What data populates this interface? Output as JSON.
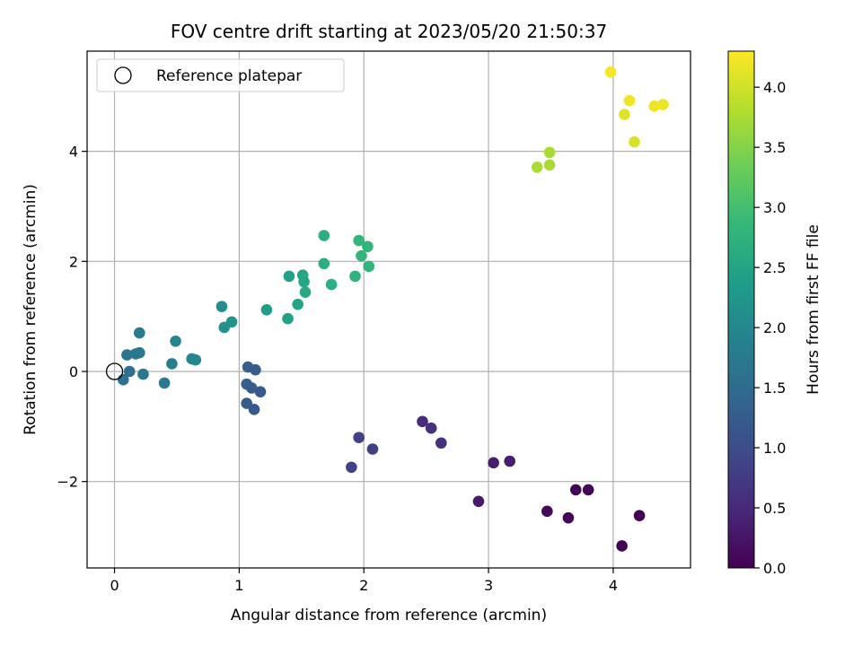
{
  "chart_data": {
    "type": "scatter",
    "title": "FOV centre drift starting at 2023/05/20 21:50:37",
    "xlabel": "Angular distance from reference (arcmin)",
    "ylabel": "Rotation from reference (arcmin)",
    "xlim": [
      -0.22,
      4.62
    ],
    "ylim": [
      -3.57,
      5.82
    ],
    "xticks": [
      0,
      1,
      2,
      3,
      4
    ],
    "yticks": [
      -2,
      0,
      2,
      4
    ],
    "ytick_labels": [
      "−2",
      "0",
      "2",
      "4"
    ],
    "grid": true,
    "legend": {
      "placement": "top-left",
      "entries": [
        "Reference platepar"
      ]
    },
    "reference_point": {
      "x": 0.0,
      "y": 0.0
    },
    "colorbar": {
      "label": "Hours from first FF file",
      "range": [
        0.0,
        4.3
      ],
      "ticks": [
        0.0,
        0.5,
        1.0,
        1.5,
        2.0,
        2.5,
        3.0,
        3.5,
        4.0
      ],
      "tick_labels": [
        "0.0",
        "0.5",
        "1.0",
        "1.5",
        "2.0",
        "2.5",
        "3.0",
        "3.5",
        "4.0"
      ],
      "colormap": "viridis"
    },
    "points": [
      {
        "x": 4.07,
        "y": -3.17,
        "c": 0.0
      },
      {
        "x": 3.64,
        "y": -2.66,
        "c": 0.05
      },
      {
        "x": 3.47,
        "y": -2.54,
        "c": 0.1
      },
      {
        "x": 3.7,
        "y": -2.15,
        "c": 0.05
      },
      {
        "x": 3.8,
        "y": -2.15,
        "c": 0.05
      },
      {
        "x": 4.21,
        "y": -2.62,
        "c": 0.0
      },
      {
        "x": 2.92,
        "y": -2.36,
        "c": 0.3
      },
      {
        "x": 3.04,
        "y": -1.66,
        "c": 0.35
      },
      {
        "x": 3.17,
        "y": -1.63,
        "c": 0.35
      },
      {
        "x": 2.47,
        "y": -0.91,
        "c": 0.55
      },
      {
        "x": 2.54,
        "y": -1.03,
        "c": 0.6
      },
      {
        "x": 2.62,
        "y": -1.3,
        "c": 0.6
      },
      {
        "x": 1.96,
        "y": -1.2,
        "c": 0.85
      },
      {
        "x": 2.07,
        "y": -1.41,
        "c": 0.8
      },
      {
        "x": 1.9,
        "y": -1.74,
        "c": 0.85
      },
      {
        "x": 1.07,
        "y": 0.08,
        "c": 1.3
      },
      {
        "x": 1.13,
        "y": 0.03,
        "c": 1.25
      },
      {
        "x": 1.06,
        "y": -0.23,
        "c": 1.3
      },
      {
        "x": 1.1,
        "y": -0.3,
        "c": 1.25
      },
      {
        "x": 1.17,
        "y": -0.37,
        "c": 1.2
      },
      {
        "x": 1.06,
        "y": -0.58,
        "c": 1.25
      },
      {
        "x": 1.12,
        "y": -0.69,
        "c": 1.2
      },
      {
        "x": 0.07,
        "y": -0.15,
        "c": 1.6
      },
      {
        "x": 0.1,
        "y": 0.3,
        "c": 1.65
      },
      {
        "x": 0.12,
        "y": 0.0,
        "c": 1.6
      },
      {
        "x": 0.17,
        "y": 0.32,
        "c": 1.7
      },
      {
        "x": 0.2,
        "y": 0.34,
        "c": 1.7
      },
      {
        "x": 0.2,
        "y": 0.7,
        "c": 1.75
      },
      {
        "x": 0.23,
        "y": -0.05,
        "c": 1.7
      },
      {
        "x": 0.4,
        "y": -0.21,
        "c": 1.75
      },
      {
        "x": 0.46,
        "y": 0.14,
        "c": 1.85
      },
      {
        "x": 0.49,
        "y": 0.55,
        "c": 1.95
      },
      {
        "x": 0.62,
        "y": 0.23,
        "c": 2.0
      },
      {
        "x": 0.65,
        "y": 0.21,
        "c": 2.0
      },
      {
        "x": 0.86,
        "y": 1.18,
        "c": 2.1
      },
      {
        "x": 0.88,
        "y": 0.8,
        "c": 2.15
      },
      {
        "x": 0.94,
        "y": 0.9,
        "c": 2.2
      },
      {
        "x": 1.22,
        "y": 1.12,
        "c": 2.35
      },
      {
        "x": 1.39,
        "y": 0.96,
        "c": 2.45
      },
      {
        "x": 1.4,
        "y": 1.73,
        "c": 2.45
      },
      {
        "x": 1.47,
        "y": 1.22,
        "c": 2.5
      },
      {
        "x": 1.51,
        "y": 1.75,
        "c": 2.55
      },
      {
        "x": 1.52,
        "y": 1.63,
        "c": 2.55
      },
      {
        "x": 1.53,
        "y": 1.44,
        "c": 2.6
      },
      {
        "x": 1.68,
        "y": 2.47,
        "c": 2.7
      },
      {
        "x": 1.68,
        "y": 1.96,
        "c": 2.7
      },
      {
        "x": 1.74,
        "y": 1.58,
        "c": 2.7
      },
      {
        "x": 1.93,
        "y": 1.73,
        "c": 2.75
      },
      {
        "x": 1.96,
        "y": 2.38,
        "c": 2.8
      },
      {
        "x": 1.98,
        "y": 2.1,
        "c": 2.8
      },
      {
        "x": 2.03,
        "y": 2.27,
        "c": 2.8
      },
      {
        "x": 2.04,
        "y": 1.91,
        "c": 2.8
      },
      {
        "x": 3.39,
        "y": 3.71,
        "c": 3.75
      },
      {
        "x": 3.49,
        "y": 3.98,
        "c": 3.75
      },
      {
        "x": 3.49,
        "y": 3.75,
        "c": 3.75
      },
      {
        "x": 3.98,
        "y": 5.44,
        "c": 4.25
      },
      {
        "x": 4.09,
        "y": 4.67,
        "c": 4.1
      },
      {
        "x": 4.13,
        "y": 4.92,
        "c": 4.2
      },
      {
        "x": 4.17,
        "y": 4.17,
        "c": 4.05
      },
      {
        "x": 4.33,
        "y": 4.82,
        "c": 4.2
      },
      {
        "x": 4.4,
        "y": 4.85,
        "c": 4.2
      }
    ]
  }
}
